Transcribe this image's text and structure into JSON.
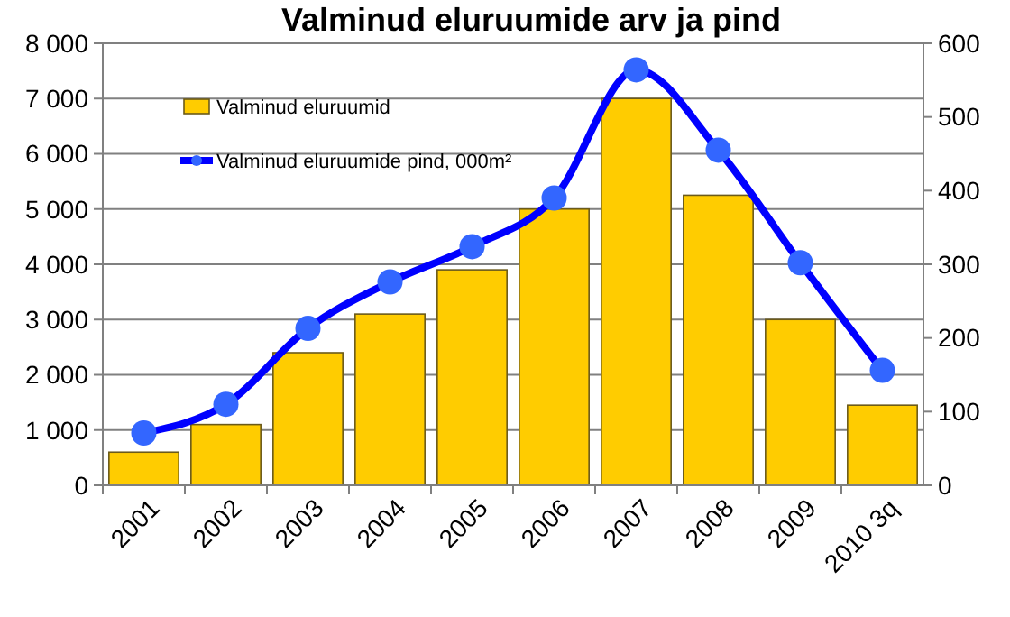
{
  "chart_data": {
    "type": "bar",
    "title": "Valminud eluruumide arv ja pind",
    "categories": [
      "2001",
      "2002",
      "2003",
      "2004",
      "2005",
      "2006",
      "2007",
      "2008",
      "2009",
      "2010 3q"
    ],
    "series": [
      {
        "name": "Valminud eluruumid",
        "color": "#ffcc00",
        "values": [
          600,
          1100,
          2400,
          3100,
          3900,
          5000,
          7000,
          5250,
          3000,
          1450
        ]
      },
      {
        "name": "Valminud eluruumide pind, 000m²",
        "type": "line",
        "axis": "y2",
        "color": "#0000ff",
        "marker": "circle",
        "values": [
          71,
          110,
          213,
          276,
          324,
          390,
          564,
          455,
          302,
          156
        ]
      }
    ],
    "ylim": [
      0,
      8000
    ],
    "yticks": [
      0,
      {
        "value": 1000,
        "label": "1 000"
      },
      {
        "value": 2000,
        "label": "2 000"
      },
      {
        "value": 3000,
        "label": "3 000"
      },
      {
        "value": 4000,
        "label": "4 000"
      },
      {
        "value": 5000,
        "label": "5 000"
      },
      {
        "value": 6000,
        "label": "6 000"
      },
      {
        "value": 7000,
        "label": "7 000"
      },
      {
        "value": 8000,
        "label": "8 000"
      }
    ],
    "y2lim": [
      0,
      600
    ],
    "y2ticks": [
      0,
      100,
      200,
      300,
      400,
      500,
      600
    ],
    "grid": "y",
    "legend": "top left"
  }
}
